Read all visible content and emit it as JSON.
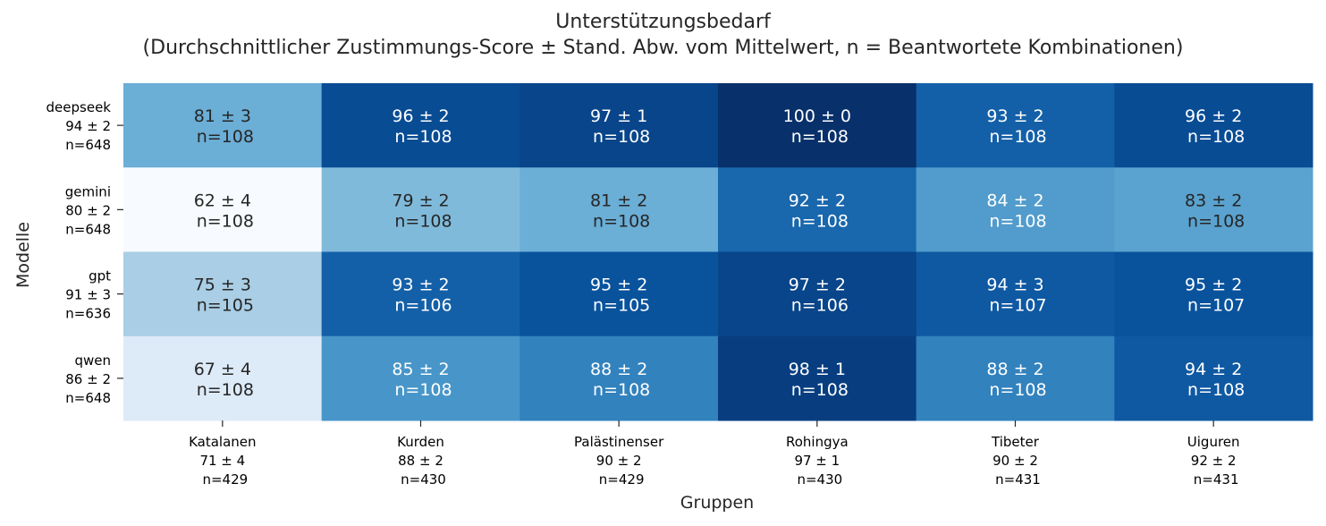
{
  "chart_data": {
    "type": "heatmap",
    "title": "Unterstützungsbedarf",
    "subtitle": "(Durchschnittlicher Zustimmungs-Score ± Stand. Abw. vom Mittelwert, n = Beantwortete Kombinationen)",
    "xlabel": "Gruppen",
    "ylabel": "Modelle",
    "colormap": "Blues",
    "color_scale": {
      "low": "#f7fbff",
      "high": "#08306b"
    },
    "grid": false,
    "colorbar": false,
    "columns": [
      {
        "name": "Katalanen",
        "summary": "71 ± 4",
        "n": "n=429"
      },
      {
        "name": "Kurden",
        "summary": "88 ± 2",
        "n": "n=430"
      },
      {
        "name": "Palästinenser",
        "summary": "90 ± 2",
        "n": "n=429"
      },
      {
        "name": "Rohingya",
        "summary": "97 ± 1",
        "n": "n=430"
      },
      {
        "name": "Tibeter",
        "summary": "90 ± 2",
        "n": "n=431"
      },
      {
        "name": "Uiguren",
        "summary": "92 ± 2",
        "n": "n=431"
      }
    ],
    "rows": [
      {
        "name": "deepseek",
        "summary": "94 ± 2",
        "n": "n=648"
      },
      {
        "name": "gemini",
        "summary": "80 ± 2",
        "n": "n=648"
      },
      {
        "name": "gpt",
        "summary": "91 ± 3",
        "n": "n=636"
      },
      {
        "name": "qwen",
        "summary": "86 ± 2",
        "n": "n=648"
      }
    ],
    "cells": [
      [
        {
          "mean": 81,
          "sd": 3,
          "n": 108
        },
        {
          "mean": 96,
          "sd": 2,
          "n": 108
        },
        {
          "mean": 97,
          "sd": 1,
          "n": 108
        },
        {
          "mean": 100,
          "sd": 0,
          "n": 108
        },
        {
          "mean": 93,
          "sd": 2,
          "n": 108
        },
        {
          "mean": 96,
          "sd": 2,
          "n": 108
        }
      ],
      [
        {
          "mean": 62,
          "sd": 4,
          "n": 108
        },
        {
          "mean": 79,
          "sd": 2,
          "n": 108
        },
        {
          "mean": 81,
          "sd": 2,
          "n": 108
        },
        {
          "mean": 92,
          "sd": 2,
          "n": 108
        },
        {
          "mean": 84,
          "sd": 2,
          "n": 108
        },
        {
          "mean": 83,
          "sd": 2,
          "n": 108
        }
      ],
      [
        {
          "mean": 75,
          "sd": 3,
          "n": 105
        },
        {
          "mean": 93,
          "sd": 2,
          "n": 106
        },
        {
          "mean": 95,
          "sd": 2,
          "n": 105
        },
        {
          "mean": 97,
          "sd": 2,
          "n": 106
        },
        {
          "mean": 94,
          "sd": 3,
          "n": 107
        },
        {
          "mean": 95,
          "sd": 2,
          "n": 107
        }
      ],
      [
        {
          "mean": 67,
          "sd": 4,
          "n": 108
        },
        {
          "mean": 85,
          "sd": 2,
          "n": 108
        },
        {
          "mean": 88,
          "sd": 2,
          "n": 108
        },
        {
          "mean": 98,
          "sd": 1,
          "n": 108
        },
        {
          "mean": 88,
          "sd": 2,
          "n": 108
        },
        {
          "mean": 94,
          "sd": 2,
          "n": 108
        }
      ]
    ]
  }
}
